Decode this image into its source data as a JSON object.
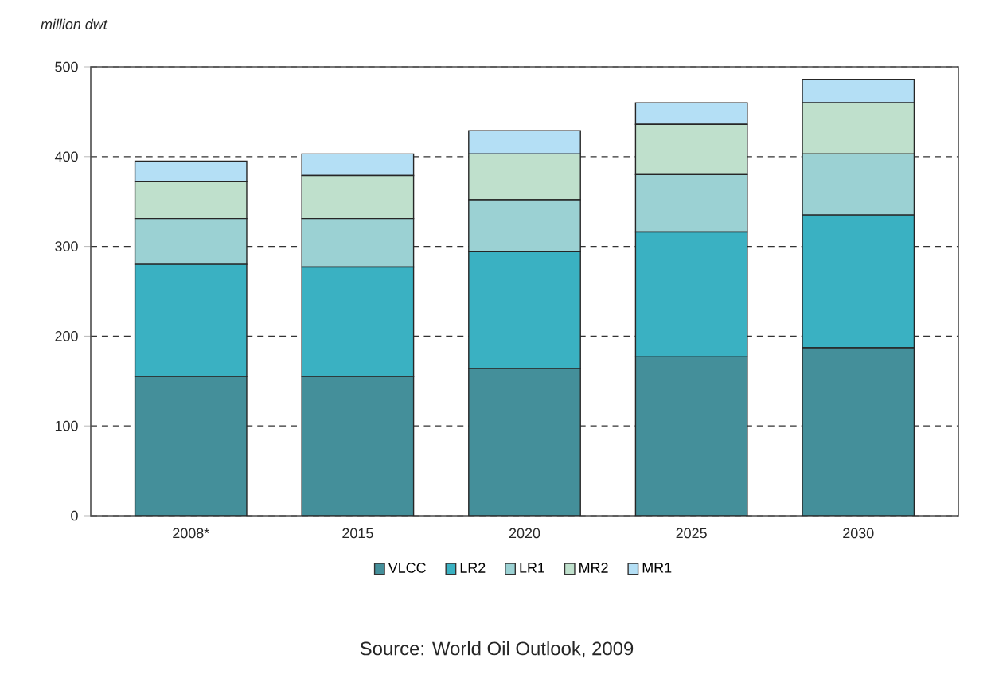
{
  "chart_data": {
    "type": "bar",
    "stacked": true,
    "ylabel": "million dwt",
    "categories": [
      "2008*",
      "2015",
      "2020",
      "2025",
      "2030"
    ],
    "series": [
      {
        "name": "VLCC",
        "color": "#448f9a",
        "values": [
          155,
          155,
          164,
          177,
          187
        ]
      },
      {
        "name": "LR2",
        "color": "#3ab1c2",
        "values": [
          125,
          122,
          130,
          139,
          148
        ]
      },
      {
        "name": "LR1",
        "color": "#9bd1d3",
        "values": [
          51,
          54,
          58,
          64,
          68
        ]
      },
      {
        "name": "MR2",
        "color": "#bfe0cc",
        "values": [
          41,
          48,
          51,
          56,
          57
        ]
      },
      {
        "name": "MR1",
        "color": "#b4dff5",
        "values": [
          23,
          24,
          26,
          24,
          26
        ]
      }
    ],
    "ylim": [
      0,
      500
    ],
    "yticks": [
      0,
      100,
      200,
      300,
      400,
      500
    ],
    "grid": "y",
    "legend": "bottom",
    "annotations": [
      "Source: World Oil Outlook, 2009"
    ]
  }
}
